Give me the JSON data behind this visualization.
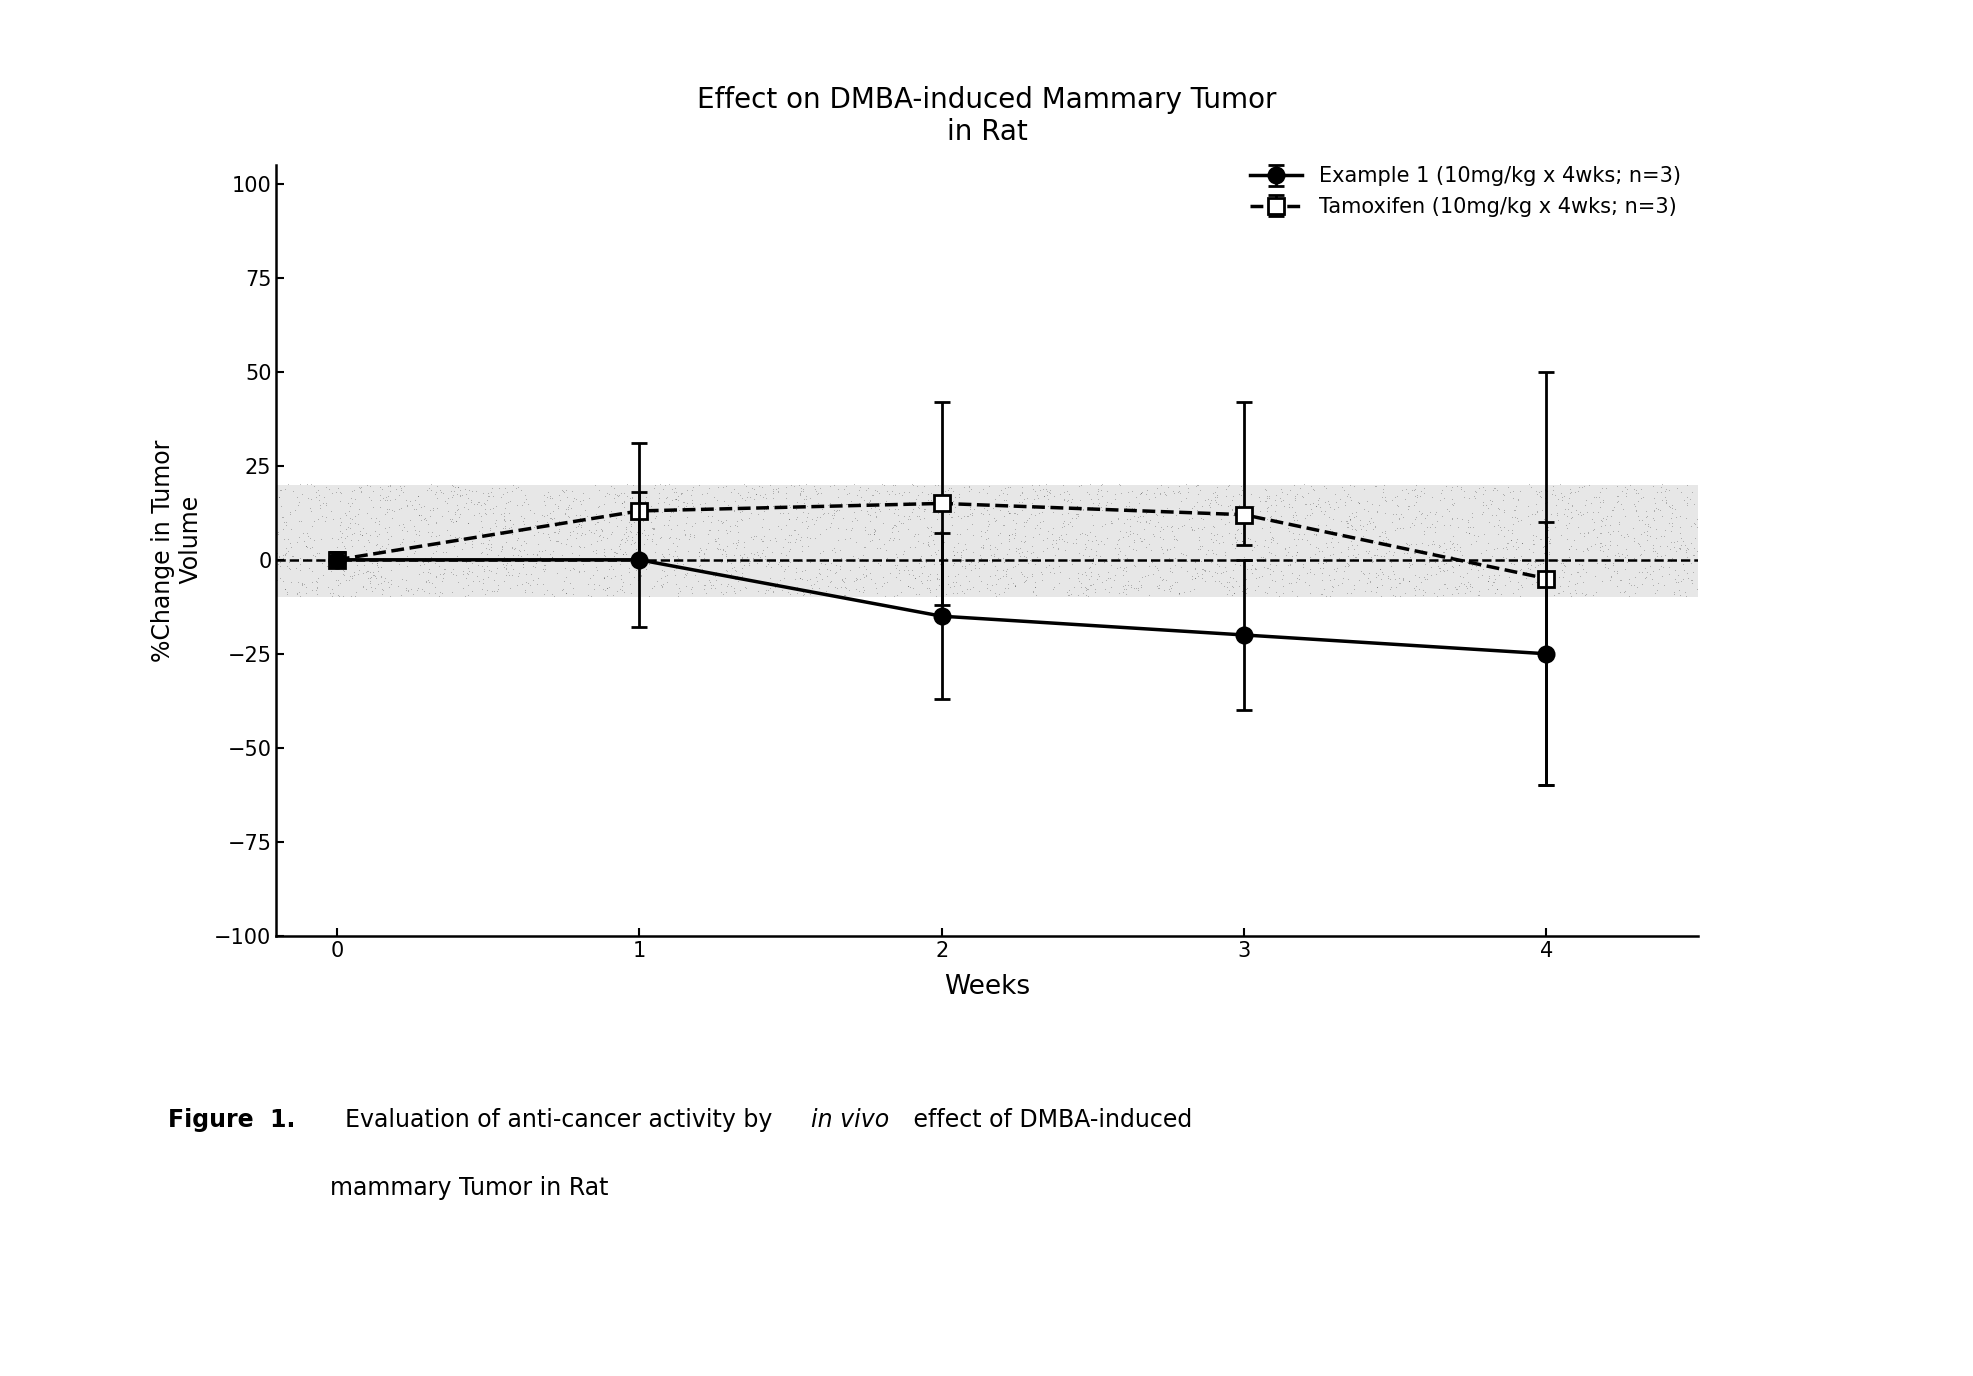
{
  "title": "Effect on DMBA-induced Mammary Tumor\nin Rat",
  "xlabel": "Weeks",
  "ylabel": "%Change in Tumor\n   Volume",
  "xlim": [
    -0.2,
    4.5
  ],
  "ylim": [
    -100,
    105
  ],
  "yticks": [
    -100,
    -75,
    -50,
    -25,
    0,
    25,
    50,
    75,
    100
  ],
  "xticks": [
    0,
    1,
    2,
    3,
    4
  ],
  "example1": {
    "x": [
      0,
      1,
      2,
      3,
      4
    ],
    "y": [
      0,
      0,
      -15,
      -20,
      -25
    ],
    "yerr_lo": [
      2,
      18,
      22,
      20,
      35
    ],
    "yerr_hi": [
      2,
      18,
      22,
      20,
      35
    ],
    "label": "Example 1 (10mg/kg x 4wks; n=3)",
    "color": "black",
    "marker": "o",
    "linestyle": "-",
    "markersize": 11,
    "linewidth": 2.5
  },
  "tamoxifen": {
    "x": [
      0,
      1,
      2,
      3,
      4
    ],
    "y": [
      0,
      13,
      15,
      12,
      -5
    ],
    "yerr_lo": [
      2,
      13,
      27,
      8,
      55
    ],
    "yerr_hi": [
      2,
      18,
      27,
      30,
      55
    ],
    "label": "Tamoxifen (10mg/kg x 4wks; n=3)",
    "color": "black",
    "marker": "s",
    "linestyle": "--",
    "markersize": 11,
    "linewidth": 2.5
  },
  "shaded_region": {
    "y_lower": -10,
    "y_upper": 20,
    "color": "#bbbbbb",
    "alpha": 0.35
  },
  "background_color": "#ffffff",
  "title_fontsize": 20,
  "label_fontsize": 17,
  "tick_fontsize": 15,
  "legend_fontsize": 15
}
